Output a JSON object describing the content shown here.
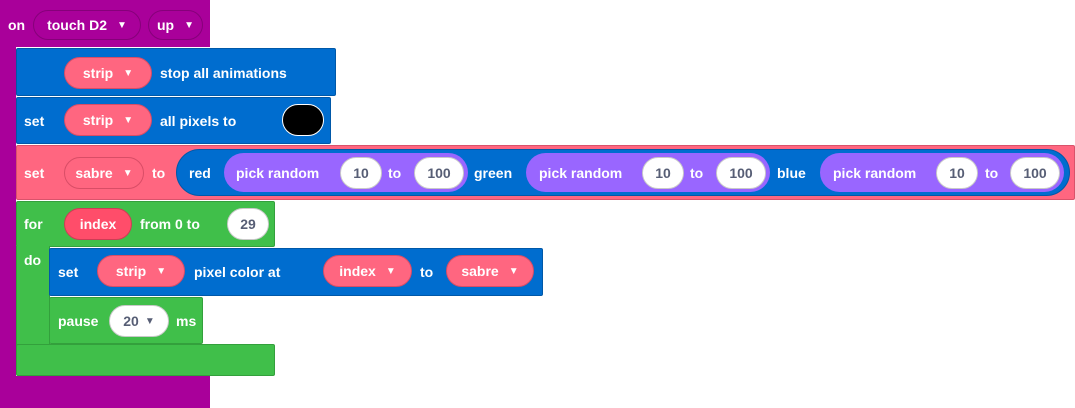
{
  "hat": {
    "on_label": "on",
    "pin_value": "touch D2",
    "event_value": "up"
  },
  "stop_block": {
    "strip_value": "strip",
    "label": "stop all animations"
  },
  "set_all": {
    "set_label": "set",
    "strip_value": "strip",
    "label": "all pixels to",
    "color": "#000000"
  },
  "set_var": {
    "set_label": "set",
    "var_value": "sabre",
    "to_label": "to",
    "rgb": {
      "red_label": "red",
      "green_label": "green",
      "blue_label": "blue",
      "red": {
        "label": "pick random",
        "from": "10",
        "to_label": "to",
        "to": "100"
      },
      "green": {
        "label": "pick random",
        "from": "10",
        "to_label": "to",
        "to": "100"
      },
      "blue": {
        "label": "pick random",
        "from": "10",
        "to_label": "to",
        "to": "100"
      }
    }
  },
  "for_loop": {
    "for_label": "for",
    "index_var": "index",
    "from_label": "from 0 to",
    "end_value": "29",
    "do_label": "do"
  },
  "set_pixel": {
    "set_label": "set",
    "strip_value": "strip",
    "label": "pixel color at",
    "index_value": "index",
    "to_label": "to",
    "color_value": "sabre"
  },
  "pause": {
    "label": "pause",
    "value": "20",
    "unit": "ms"
  },
  "icons": {
    "dropdown": "chevron-down-icon"
  }
}
